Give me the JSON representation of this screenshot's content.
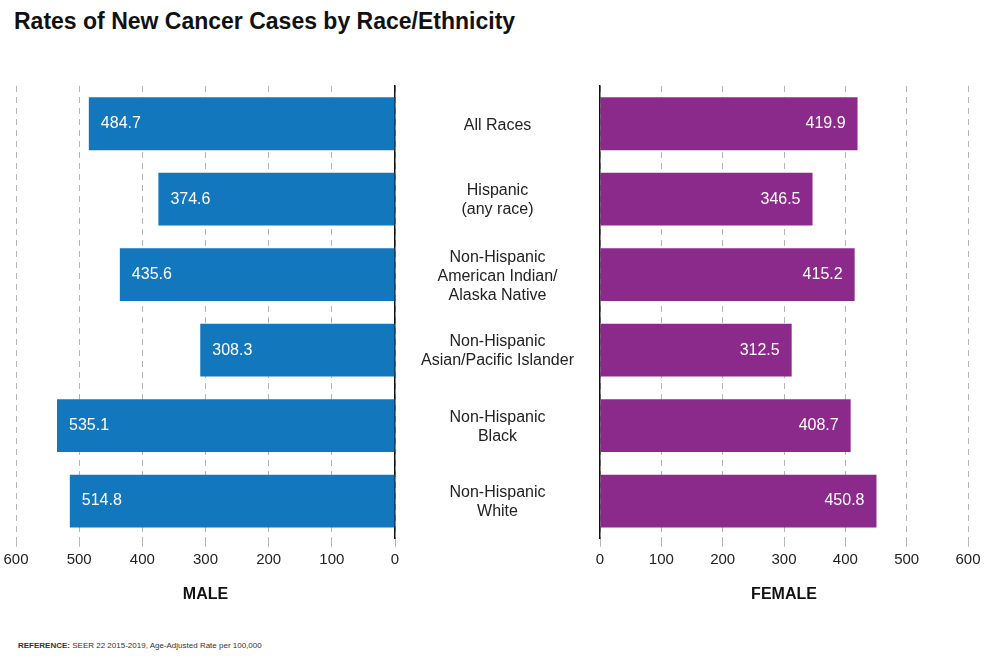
{
  "chart_data": {
    "type": "bar",
    "title": "Rates of New Cancer Cases by Race/Ethnicity",
    "orientation": "horizontal",
    "categories": [
      "All Races",
      "Hispanic\n(any race)",
      "Non-Hispanic\nAmerican Indian/\nAlaska Native",
      "Non-Hispanic\nAsian/Pacific Islander",
      "Non-Hispanic\nBlack",
      "Non-Hispanic\nWhite"
    ],
    "series": [
      {
        "name": "MALE",
        "color": "#1377bd",
        "values": [
          484.7,
          374.6,
          435.6,
          308.3,
          535.1,
          514.8
        ]
      },
      {
        "name": "FEMALE",
        "color": "#8c2a8c",
        "values": [
          419.9,
          346.5,
          415.2,
          312.5,
          408.7,
          450.8
        ]
      }
    ],
    "xlim": [
      0,
      600
    ],
    "xticks": [
      0,
      100,
      200,
      300,
      400,
      500,
      600
    ],
    "grid": true,
    "data_labels": true,
    "note": "REFERENCE: SEER 22 2015-2019, Age-Adjusted Rate per 100,000"
  }
}
